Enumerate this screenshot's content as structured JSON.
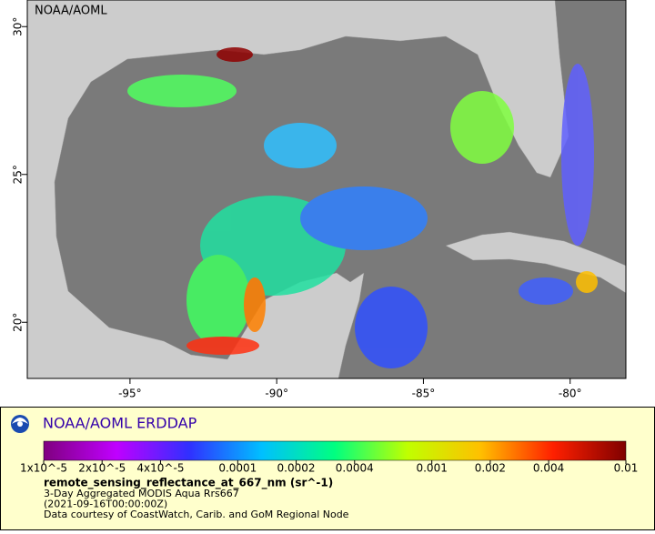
{
  "map": {
    "corner_label": "NOAA/AOML",
    "lonlim": [
      -98.5,
      -78.1
    ],
    "latlim": [
      18.1,
      30.9
    ],
    "lon_ticks": [
      {
        "value": -95,
        "label": "-95°"
      },
      {
        "value": -90,
        "label": "-90°"
      },
      {
        "value": -85,
        "label": "-85°"
      },
      {
        "value": -80,
        "label": "-80°"
      }
    ],
    "lat_ticks": [
      {
        "value": 30,
        "label": "30°"
      },
      {
        "value": 25,
        "label": "25°"
      },
      {
        "value": 20,
        "label": "20°"
      }
    ]
  },
  "legend": {
    "brand": "NOAA/AOML ERDDAP",
    "colorbar": {
      "range": [
        1e-05,
        0.01
      ],
      "log": true,
      "colors": [
        "#7f007f",
        "#c000ff",
        "#3030ff",
        "#00c0ff",
        "#00ff80",
        "#c0ff00",
        "#ffc000",
        "#ff2000",
        "#800000"
      ],
      "ticks": [
        {
          "value": 1e-05,
          "label": "1x10^-5"
        },
        {
          "value": 2e-05,
          "label": "2x10^-5"
        },
        {
          "value": 4e-05,
          "label": "4x10^-5"
        },
        0.0001,
        0.0002,
        0.0004,
        0.001,
        0.002,
        0.004,
        0.01
      ]
    },
    "variable": "remote_sensing_reflectance_at_667_nm (sr^-1)",
    "lines": [
      "3-Day Aggregated MODIS Aqua Rrs667",
      "(2021-09-16T00:00:00Z)",
      "Data courtesy of CoastWatch, Carib. and GoM Regional Node"
    ]
  }
}
